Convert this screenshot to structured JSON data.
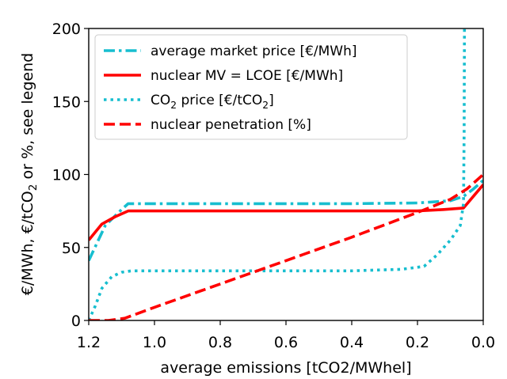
{
  "chart_data": {
    "type": "line",
    "xlabel": "average emissions [tCO2/MWhel]",
    "ylabel_parts": [
      "€/MWh, €/tCO",
      "2",
      " or %, see legend"
    ],
    "xlim": [
      1.2,
      0.0
    ],
    "ylim": [
      0,
      200
    ],
    "x_ticks": [
      "1.2",
      "1.0",
      "0.8",
      "0.6",
      "0.4",
      "0.2",
      "0.0"
    ],
    "x_tick_values": [
      1.2,
      1.0,
      0.8,
      0.6,
      0.4,
      0.2,
      0.0
    ],
    "y_ticks": [
      "0",
      "50",
      "100",
      "150",
      "200"
    ],
    "y_tick_values": [
      0,
      50,
      100,
      150,
      200
    ],
    "grid": false,
    "legend_placement": "top-left",
    "series": [
      {
        "name": "average market price [€/MWh]",
        "legend_parts": [
          "average market price [€/MWh]"
        ],
        "color": "#17becf",
        "style": "dashdot",
        "points": [
          [
            1.2,
            41
          ],
          [
            1.15,
            65
          ],
          [
            1.1,
            76
          ],
          [
            1.08,
            80
          ],
          [
            1.0,
            80
          ],
          [
            0.8,
            80
          ],
          [
            0.6,
            80
          ],
          [
            0.4,
            80
          ],
          [
            0.2,
            80.5
          ],
          [
            0.1,
            82
          ],
          [
            0.06,
            85
          ],
          [
            0.03,
            90
          ],
          [
            0.0,
            96
          ]
        ]
      },
      {
        "name": "nuclear MV = LCOE [€/MWh]",
        "legend_parts": [
          "nuclear MV = LCOE [€/MWh]"
        ],
        "color": "#ff0000",
        "style": "solid",
        "points": [
          [
            1.2,
            55
          ],
          [
            1.16,
            66
          ],
          [
            1.12,
            71
          ],
          [
            1.08,
            75
          ],
          [
            1.0,
            75
          ],
          [
            0.8,
            75
          ],
          [
            0.6,
            75
          ],
          [
            0.4,
            75
          ],
          [
            0.2,
            75
          ],
          [
            0.12,
            76
          ],
          [
            0.06,
            77
          ],
          [
            0.03,
            85
          ],
          [
            0.0,
            93
          ]
        ]
      },
      {
        "name": "CO2 price [€/tCO2]",
        "legend_parts": [
          "CO",
          "2",
          " price [€/tCO",
          "2",
          "]"
        ],
        "color": "#17becf",
        "style": "dotted",
        "points": [
          [
            1.2,
            0
          ],
          [
            1.18,
            10
          ],
          [
            1.16,
            22
          ],
          [
            1.13,
            30
          ],
          [
            1.1,
            33
          ],
          [
            1.07,
            34
          ],
          [
            1.0,
            34
          ],
          [
            0.8,
            34
          ],
          [
            0.6,
            34
          ],
          [
            0.4,
            34
          ],
          [
            0.25,
            35
          ],
          [
            0.18,
            37
          ],
          [
            0.14,
            45
          ],
          [
            0.1,
            55
          ],
          [
            0.07,
            65
          ],
          [
            0.06,
            80
          ],
          [
            0.058,
            130
          ],
          [
            0.057,
            200
          ]
        ]
      },
      {
        "name": "nuclear penetration [%]",
        "legend_parts": [
          "nuclear penetration [%]"
        ],
        "color": "#ff0000",
        "style": "dashed",
        "points": [
          [
            1.2,
            0
          ],
          [
            1.14,
            0
          ],
          [
            1.09,
            1.5
          ],
          [
            1.0,
            9
          ],
          [
            0.8,
            25
          ],
          [
            0.6,
            41
          ],
          [
            0.4,
            57
          ],
          [
            0.2,
            74
          ],
          [
            0.1,
            83
          ],
          [
            0.05,
            90
          ],
          [
            0.0,
            100
          ]
        ]
      }
    ]
  }
}
